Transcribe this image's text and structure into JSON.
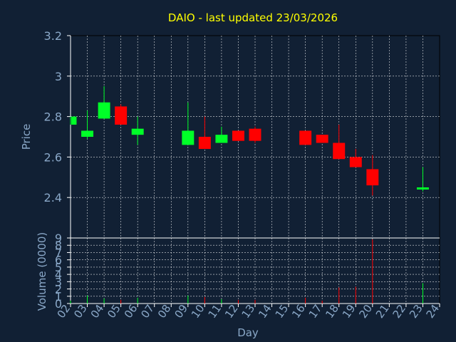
{
  "colors": {
    "background": "#112034",
    "title": "#ffff00",
    "axis_text": "#8aa8c8",
    "axis_line": "#ffffff",
    "grid": "#ffffff",
    "up": "#00ff28",
    "down": "#ff0000",
    "frame": "#000000"
  },
  "chart_data": {
    "type": "candlestick",
    "title": "DAIO - last updated 23/03/2026",
    "xlabel": "Day",
    "ylabel_price": "Price",
    "ylabel_volume": "Volume (0000)",
    "x_ticks": [
      "02",
      "03",
      "04",
      "05",
      "06",
      "07",
      "08",
      "09",
      "10",
      "11",
      "12",
      "13",
      "14",
      "15",
      "16",
      "17",
      "18",
      "19",
      "20",
      "21",
      "22",
      "23",
      "24"
    ],
    "price_ylim": [
      2.2,
      3.2
    ],
    "price_ticks": [
      "2.4",
      "2.6",
      "2.8",
      "3",
      "3.2"
    ],
    "volume_ylim": [
      0,
      9
    ],
    "volume_ticks": [
      "0",
      "1",
      "2",
      "3",
      "4",
      "5",
      "6",
      "7",
      "8",
      "9"
    ],
    "grid": true,
    "candles": [
      {
        "day": "02",
        "open": 2.76,
        "high": 2.8,
        "low": 2.76,
        "close": 2.8,
        "volume": 0.4
      },
      {
        "day": "03",
        "open": 2.7,
        "high": 2.83,
        "low": 2.69,
        "close": 2.73,
        "volume": 1.1
      },
      {
        "day": "04",
        "open": 2.79,
        "high": 2.95,
        "low": 2.79,
        "close": 2.87,
        "volume": 0.7
      },
      {
        "day": "05",
        "open": 2.85,
        "high": 2.86,
        "low": 2.76,
        "close": 2.76,
        "volume": 0.5
      },
      {
        "day": "06",
        "open": 2.71,
        "high": 2.8,
        "low": 2.66,
        "close": 2.74,
        "volume": 0.8
      },
      {
        "day": "09",
        "open": 2.66,
        "high": 2.87,
        "low": 2.66,
        "close": 2.73,
        "volume": 1.1
      },
      {
        "day": "10",
        "open": 2.7,
        "high": 2.8,
        "low": 2.64,
        "close": 2.64,
        "volume": 0.9
      },
      {
        "day": "11",
        "open": 2.67,
        "high": 2.75,
        "low": 2.67,
        "close": 2.71,
        "volume": 0.6
      },
      {
        "day": "12",
        "open": 2.73,
        "high": 2.73,
        "low": 2.68,
        "close": 2.68,
        "volume": 0.5
      },
      {
        "day": "13",
        "open": 2.74,
        "high": 2.75,
        "low": 2.67,
        "close": 2.68,
        "volume": 0.5
      },
      {
        "day": "16",
        "open": 2.73,
        "high": 2.73,
        "low": 2.66,
        "close": 2.66,
        "volume": 0.8
      },
      {
        "day": "17",
        "open": 2.71,
        "high": 2.71,
        "low": 2.67,
        "close": 2.67,
        "volume": 0.4
      },
      {
        "day": "18",
        "open": 2.67,
        "high": 2.76,
        "low": 2.59,
        "close": 2.59,
        "volume": 2.2
      },
      {
        "day": "19",
        "open": 2.6,
        "high": 2.64,
        "low": 2.55,
        "close": 2.55,
        "volume": 2.3
      },
      {
        "day": "20",
        "open": 2.54,
        "high": 2.61,
        "low": 2.41,
        "close": 2.46,
        "volume": 8.8
      },
      {
        "day": "23",
        "open": 2.44,
        "high": 2.55,
        "low": 2.43,
        "close": 2.45,
        "volume": 2.8
      }
    ]
  }
}
